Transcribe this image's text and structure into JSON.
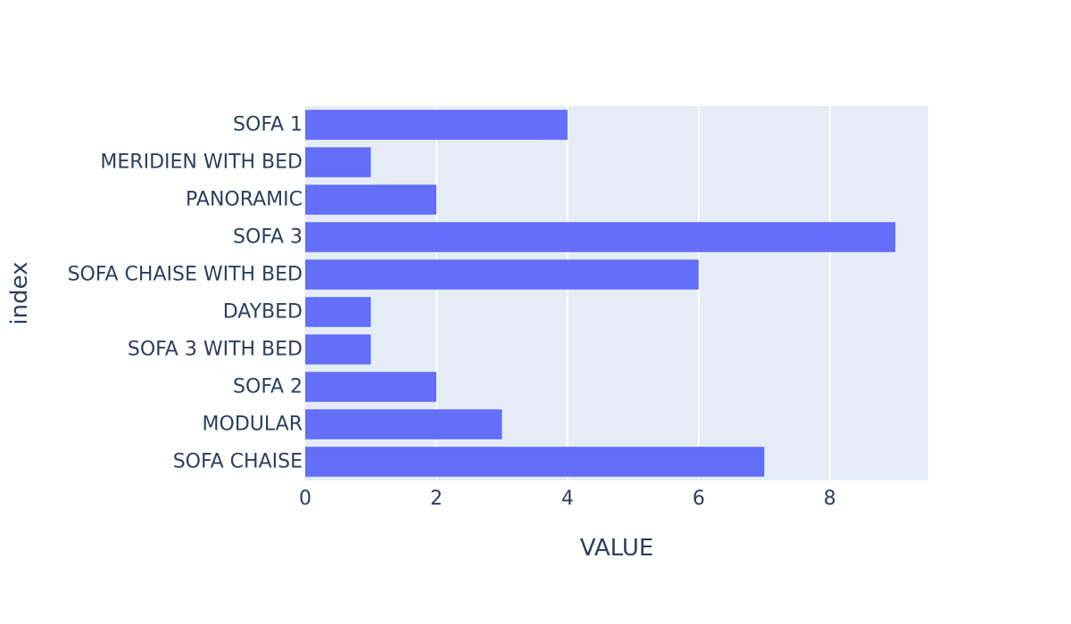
{
  "chart_data": {
    "type": "bar",
    "orientation": "horizontal",
    "categories": [
      "SOFA CHAISE",
      "MODULAR",
      "SOFA 2",
      "SOFA 3 WITH BED",
      "DAYBED",
      "SOFA CHAISE WITH BED",
      "SOFA 3",
      "PANORAMIC",
      "MERIDIEN WITH BED",
      "SOFA 1"
    ],
    "values": [
      7,
      3,
      2,
      1,
      1,
      6,
      9,
      2,
      1,
      4
    ],
    "xlabel": "VALUE",
    "ylabel": "index",
    "xlim": [
      0,
      9.5
    ],
    "xticks": [
      0,
      2,
      4,
      6,
      8
    ],
    "grid": true,
    "colors": {
      "bar": "#636efa",
      "plot_background": "#e5ecf6",
      "gridline": "#ffffff",
      "text": "#2a3f5f"
    }
  }
}
